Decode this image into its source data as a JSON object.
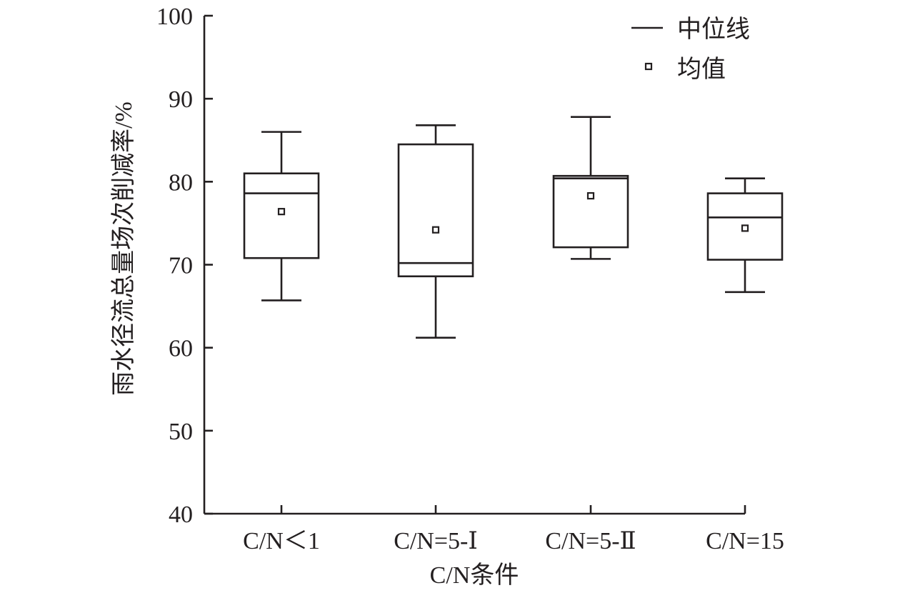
{
  "chart_data": {
    "type": "box",
    "xlabel": "C/N条件",
    "ylabel": "雨水径流总量场次削减率/%",
    "ylim": [
      40,
      100
    ],
    "yticks": [
      40,
      50,
      60,
      70,
      80,
      90,
      100
    ],
    "grid": false,
    "legend_position": "top-right",
    "legend": [
      {
        "label": "中位线",
        "kind": "median-line"
      },
      {
        "label": "均值",
        "kind": "mean-marker"
      }
    ],
    "categories": [
      "C/N＜1",
      "C/N=5-Ⅰ",
      "C/N=5-Ⅱ",
      "C/N=15"
    ],
    "boxes": [
      {
        "category": "C/N＜1",
        "min": 65.7,
        "q1": 70.8,
        "median": 78.6,
        "q3": 81.0,
        "max": 86.0,
        "mean": 76.4
      },
      {
        "category": "C/N=5-Ⅰ",
        "min": 61.2,
        "q1": 68.6,
        "median": 70.2,
        "q3": 84.5,
        "max": 86.8,
        "mean": 74.2
      },
      {
        "category": "C/N=5-Ⅱ",
        "min": 70.7,
        "q1": 72.1,
        "median": 80.4,
        "q3": 80.7,
        "max": 87.8,
        "mean": 78.3
      },
      {
        "category": "C/N=15",
        "min": 66.7,
        "q1": 70.6,
        "median": 75.7,
        "q3": 78.6,
        "max": 80.4,
        "mean": 74.4
      }
    ]
  }
}
